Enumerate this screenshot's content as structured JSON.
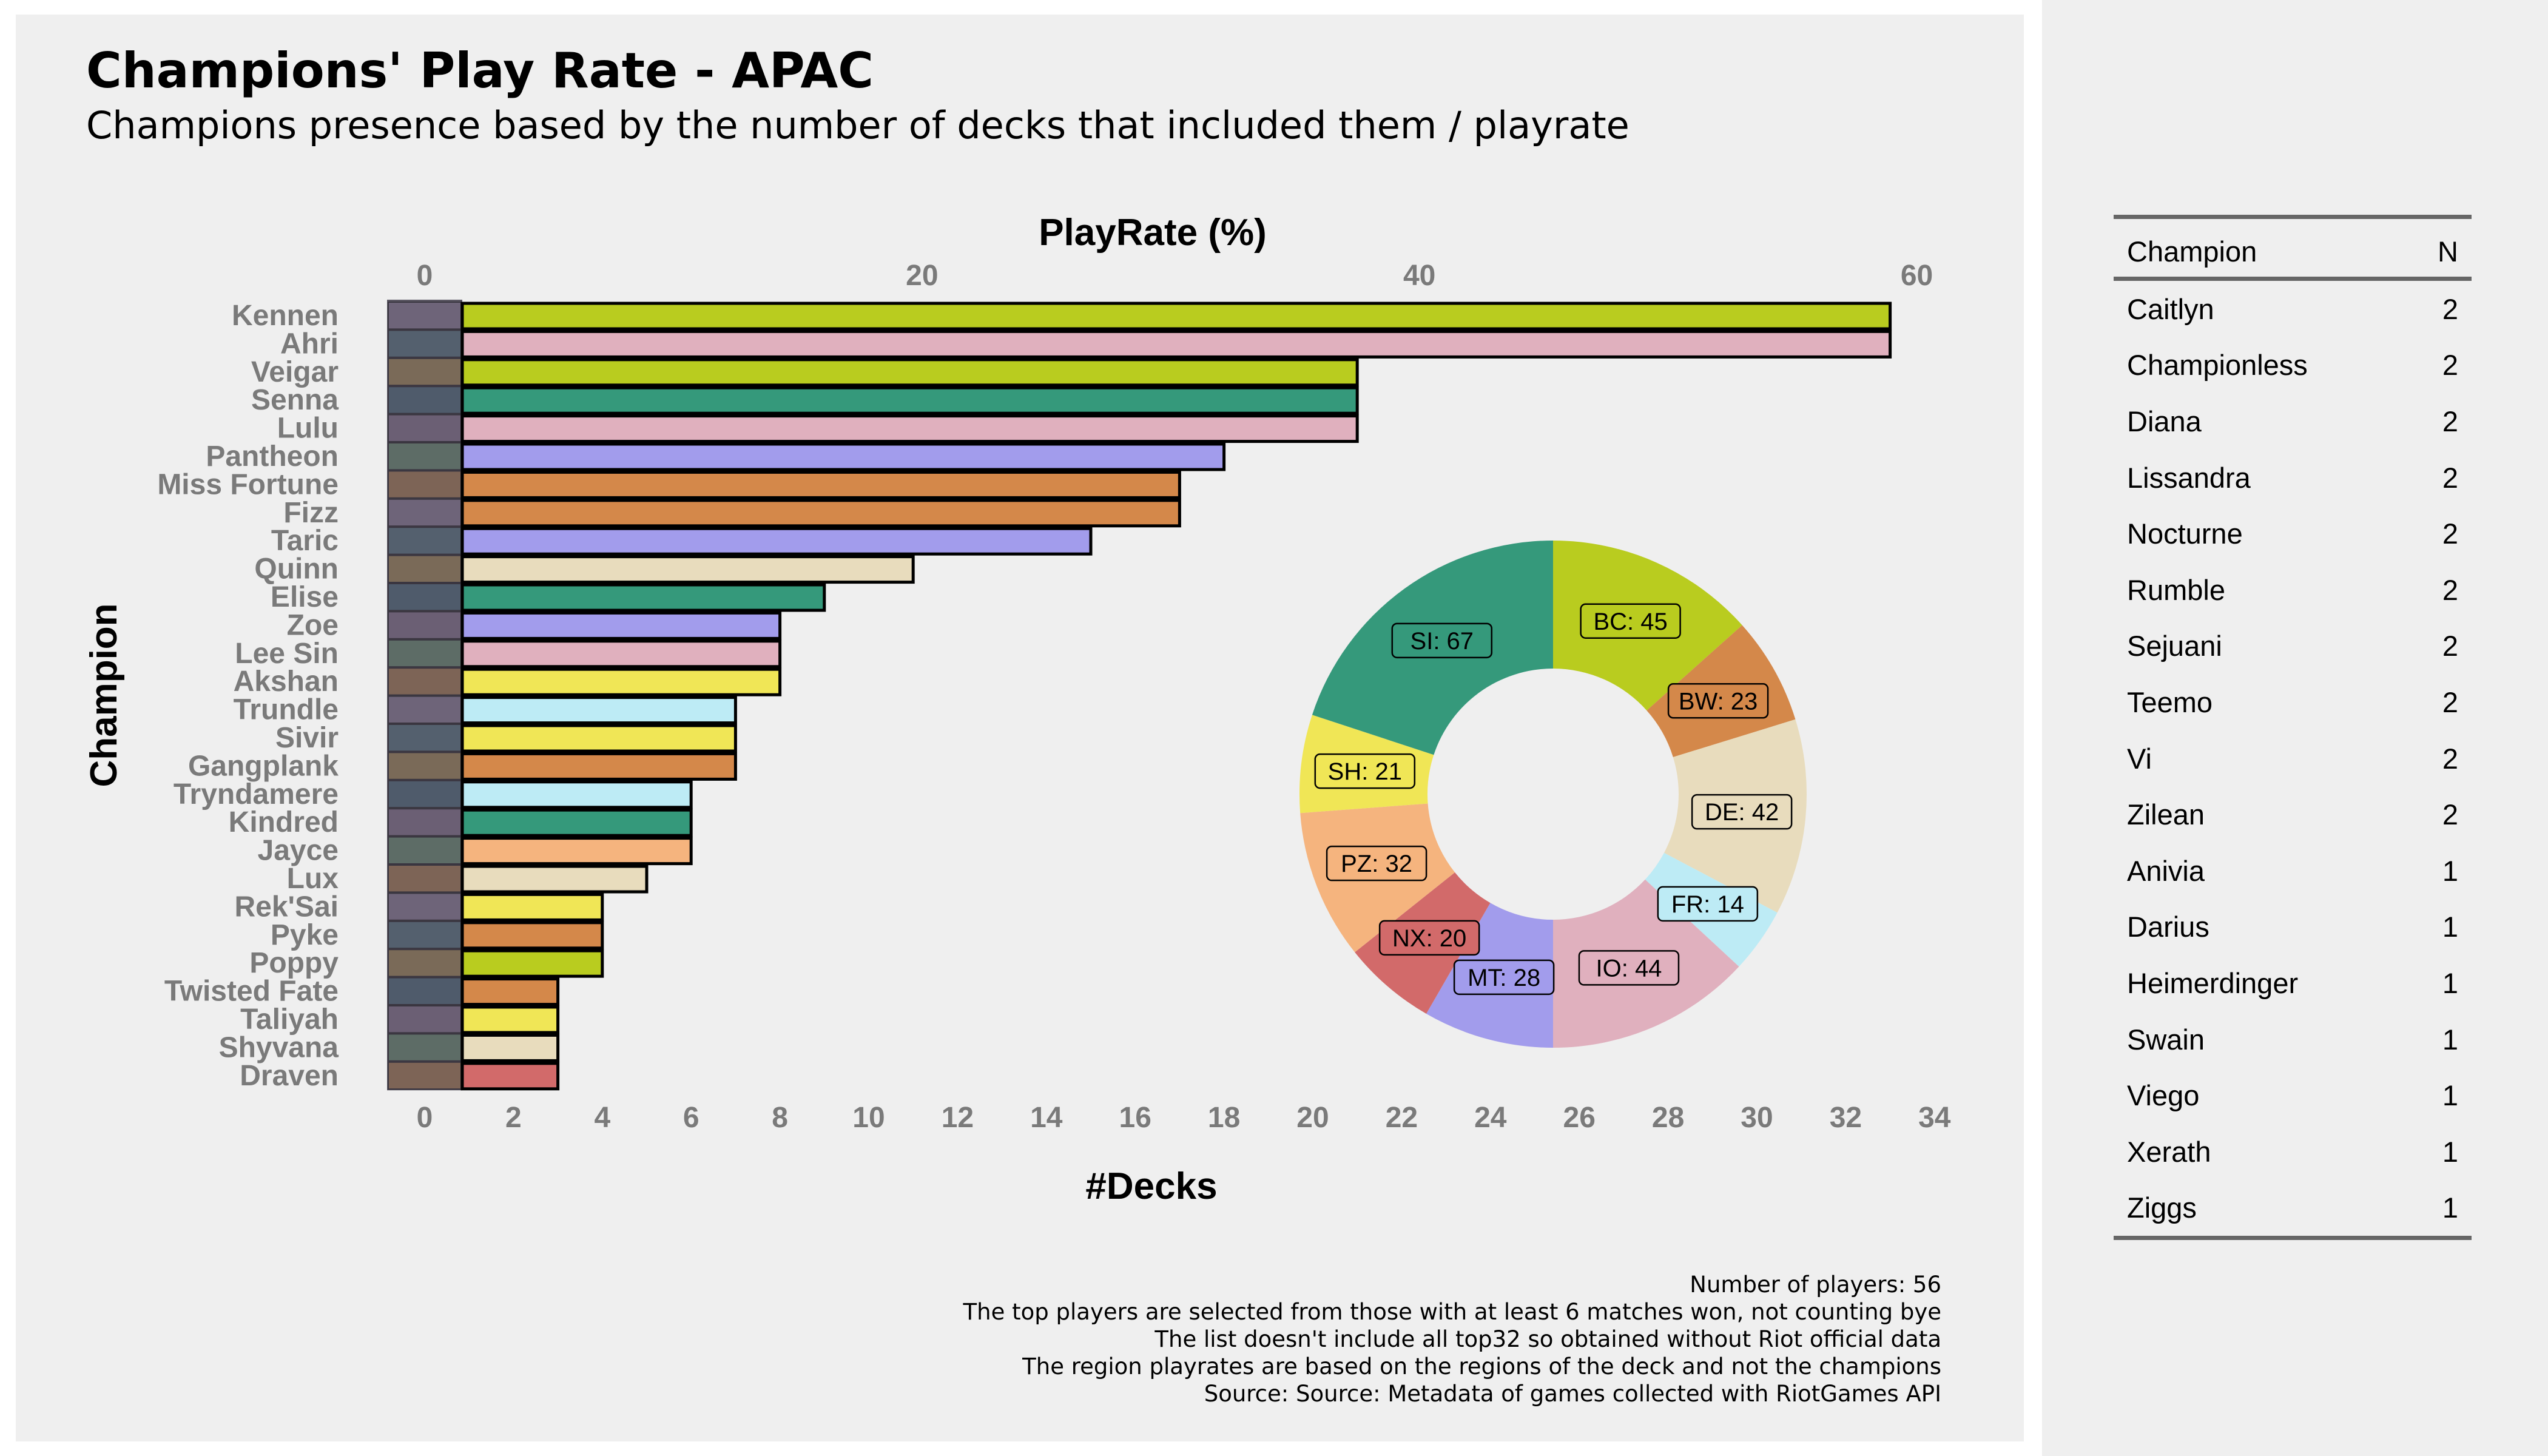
{
  "title": "Champions' Play Rate - APAC",
  "subtitle": "Champions presence based by the number of decks that included them / playrate",
  "chart_data": [
    {
      "type": "bar",
      "orientation": "horizontal",
      "title": "",
      "xlabel": "#Decks",
      "secondary_xlabel": "PlayRate (%)",
      "ylabel": "Champion",
      "xlim": [
        0,
        34
      ],
      "x_ticks": [
        "0",
        "2",
        "4",
        "6",
        "8",
        "10",
        "12",
        "14",
        "16",
        "18",
        "20",
        "22",
        "24",
        "26",
        "28",
        "30",
        "32",
        "34"
      ],
      "secondary_x_ticks": [
        "0",
        "20",
        "40",
        "60"
      ],
      "categories": [
        "Kennen",
        "Ahri",
        "Veigar",
        "Senna",
        "Lulu",
        "Pantheon",
        "Miss Fortune",
        "Fizz",
        "Taric",
        "Quinn",
        "Elise",
        "Zoe",
        "Lee Sin",
        "Akshan",
        "Trundle",
        "Sivir",
        "Gangplank",
        "Tryndamere",
        "Kindred",
        "Jayce",
        "Lux",
        "Rek'Sai",
        "Pyke",
        "Poppy",
        "Twisted Fate",
        "Taliyah",
        "Shyvana",
        "Draven"
      ],
      "values": [
        33,
        33,
        21,
        21,
        21,
        18,
        17,
        17,
        15,
        11,
        9,
        8,
        8,
        8,
        7,
        7,
        7,
        6,
        6,
        6,
        5,
        4,
        4,
        4,
        3,
        3,
        3,
        3
      ],
      "colors": [
        "#b9cc1f",
        "#e0b0be",
        "#b9cc1f",
        "#35997b",
        "#e0b0be",
        "#a29cec",
        "#d4884a",
        "#d4884a",
        "#a29cec",
        "#e8dcbd",
        "#35997b",
        "#a29cec",
        "#e0b0be",
        "#f0e656",
        "#bdebf5",
        "#f0e656",
        "#d4884a",
        "#bdebf5",
        "#35997b",
        "#f5b47e",
        "#e8dcbd",
        "#f0e656",
        "#d4884a",
        "#b9cc1f",
        "#d4884a",
        "#f0e656",
        "#e8dcbd",
        "#d26a6a"
      ],
      "grid": false
    },
    {
      "type": "pie",
      "variant": "donut",
      "labels": [
        "BC",
        "BW",
        "DE",
        "FR",
        "IO",
        "MT",
        "NX",
        "PZ",
        "SH",
        "SI"
      ],
      "values": [
        45,
        23,
        42,
        14,
        44,
        28,
        20,
        32,
        21,
        67
      ],
      "display_labels": [
        "BC: 45",
        "BW: 23",
        "DE: 42",
        "FR: 14",
        "IO: 44",
        "MT: 28",
        "NX: 20",
        "PZ: 32",
        "SH: 21",
        "SI: 67"
      ],
      "colors": [
        "#b9cc1f",
        "#d4884a",
        "#e8dcbd",
        "#bdebf5",
        "#e0b0be",
        "#a29cec",
        "#d26a6a",
        "#f5b47e",
        "#f0e656",
        "#35997b"
      ]
    },
    {
      "type": "table",
      "columns": [
        "Champion",
        "N"
      ],
      "rows": [
        [
          "Caitlyn",
          "2"
        ],
        [
          "Championless",
          "2"
        ],
        [
          "Diana",
          "2"
        ],
        [
          "Lissandra",
          "2"
        ],
        [
          "Nocturne",
          "2"
        ],
        [
          "Rumble",
          "2"
        ],
        [
          "Sejuani",
          "2"
        ],
        [
          "Teemo",
          "2"
        ],
        [
          "Vi",
          "2"
        ],
        [
          "Zilean",
          "2"
        ],
        [
          "Anivia",
          "1"
        ],
        [
          "Darius",
          "1"
        ],
        [
          "Heimerdinger",
          "1"
        ],
        [
          "Swain",
          "1"
        ],
        [
          "Viego",
          "1"
        ],
        [
          "Xerath",
          "1"
        ],
        [
          "Ziggs",
          "1"
        ]
      ]
    }
  ],
  "notes": [
    "Number of players: 56",
    "The top players are selected from those with at least 6 matches won, not counting bye",
    "The list doesn't include all top32 so obtained without Riot official data",
    "The region playrates are based on the regions of the deck and not the champions",
    "Source: Source: Metadata of games collected with RiotGames API"
  ]
}
